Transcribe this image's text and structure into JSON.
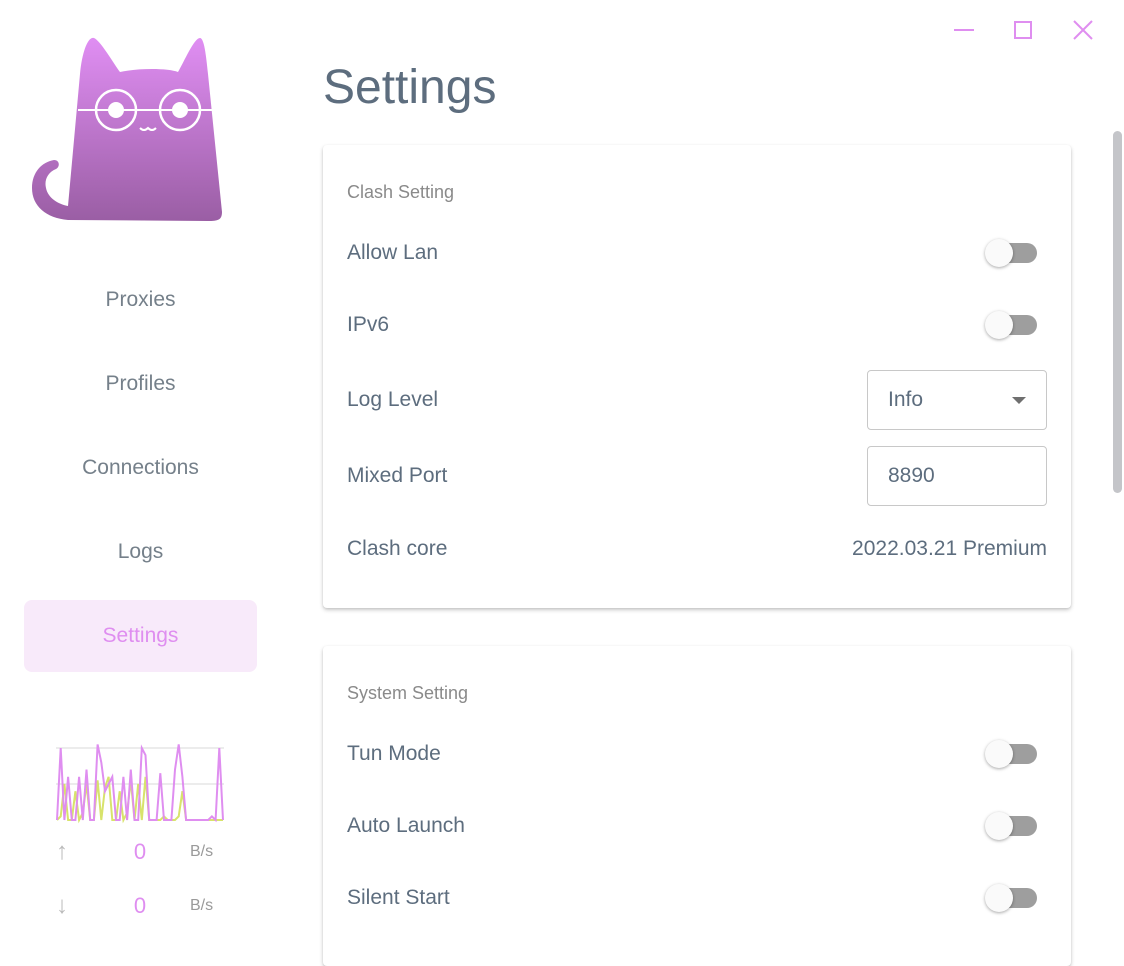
{
  "window": {
    "controls": [
      "minimize",
      "maximize",
      "close"
    ],
    "accent": "#df8ef0"
  },
  "sidebar": {
    "items": [
      {
        "label": "Proxies"
      },
      {
        "label": "Profiles"
      },
      {
        "label": "Connections"
      },
      {
        "label": "Logs"
      },
      {
        "label": "Settings",
        "active": true
      }
    ],
    "traffic": {
      "upload": {
        "value": "0",
        "unit": "B/s",
        "icon": "arrow-up-icon"
      },
      "download": {
        "value": "0",
        "unit": "B/s",
        "icon": "arrow-down-icon"
      }
    },
    "traffic_graph": {
      "upload_color": "#df8ef0",
      "download_color": "#d8e36b",
      "upload": [
        0,
        100,
        0,
        60,
        0,
        0,
        60,
        0,
        70,
        0,
        0,
        105,
        80,
        40,
        50,
        60,
        0,
        0,
        60,
        0,
        70,
        0,
        0,
        100,
        90,
        0,
        0,
        0,
        65,
        0,
        0,
        0,
        70,
        105,
        60,
        0,
        0,
        0,
        0,
        0,
        0,
        0,
        5,
        0,
        100,
        0
      ],
      "download": [
        0,
        5,
        50,
        0,
        0,
        40,
        0,
        10,
        50,
        0,
        0,
        55,
        0,
        45,
        60,
        0,
        0,
        40,
        0,
        10,
        55,
        0,
        50,
        0,
        60,
        0,
        0,
        0,
        0,
        5,
        0,
        0,
        0,
        5,
        40,
        0,
        0,
        0,
        0,
        0,
        0,
        0,
        0,
        0,
        0,
        0
      ]
    }
  },
  "page": {
    "title": "Settings"
  },
  "clash_setting": {
    "title": "Clash Setting",
    "allow_lan": {
      "label": "Allow Lan",
      "on": false
    },
    "ipv6": {
      "label": "IPv6",
      "on": false
    },
    "log_level": {
      "label": "Log Level",
      "value": "Info"
    },
    "mixed_port": {
      "label": "Mixed Port",
      "value": "8890"
    },
    "clash_core": {
      "label": "Clash core",
      "value": "2022.03.21 Premium"
    }
  },
  "system_setting": {
    "title": "System Setting",
    "tun_mode": {
      "label": "Tun Mode",
      "on": false
    },
    "auto_launch": {
      "label": "Auto Launch",
      "on": false
    },
    "silent_start": {
      "label": "Silent Start",
      "on": false
    }
  }
}
